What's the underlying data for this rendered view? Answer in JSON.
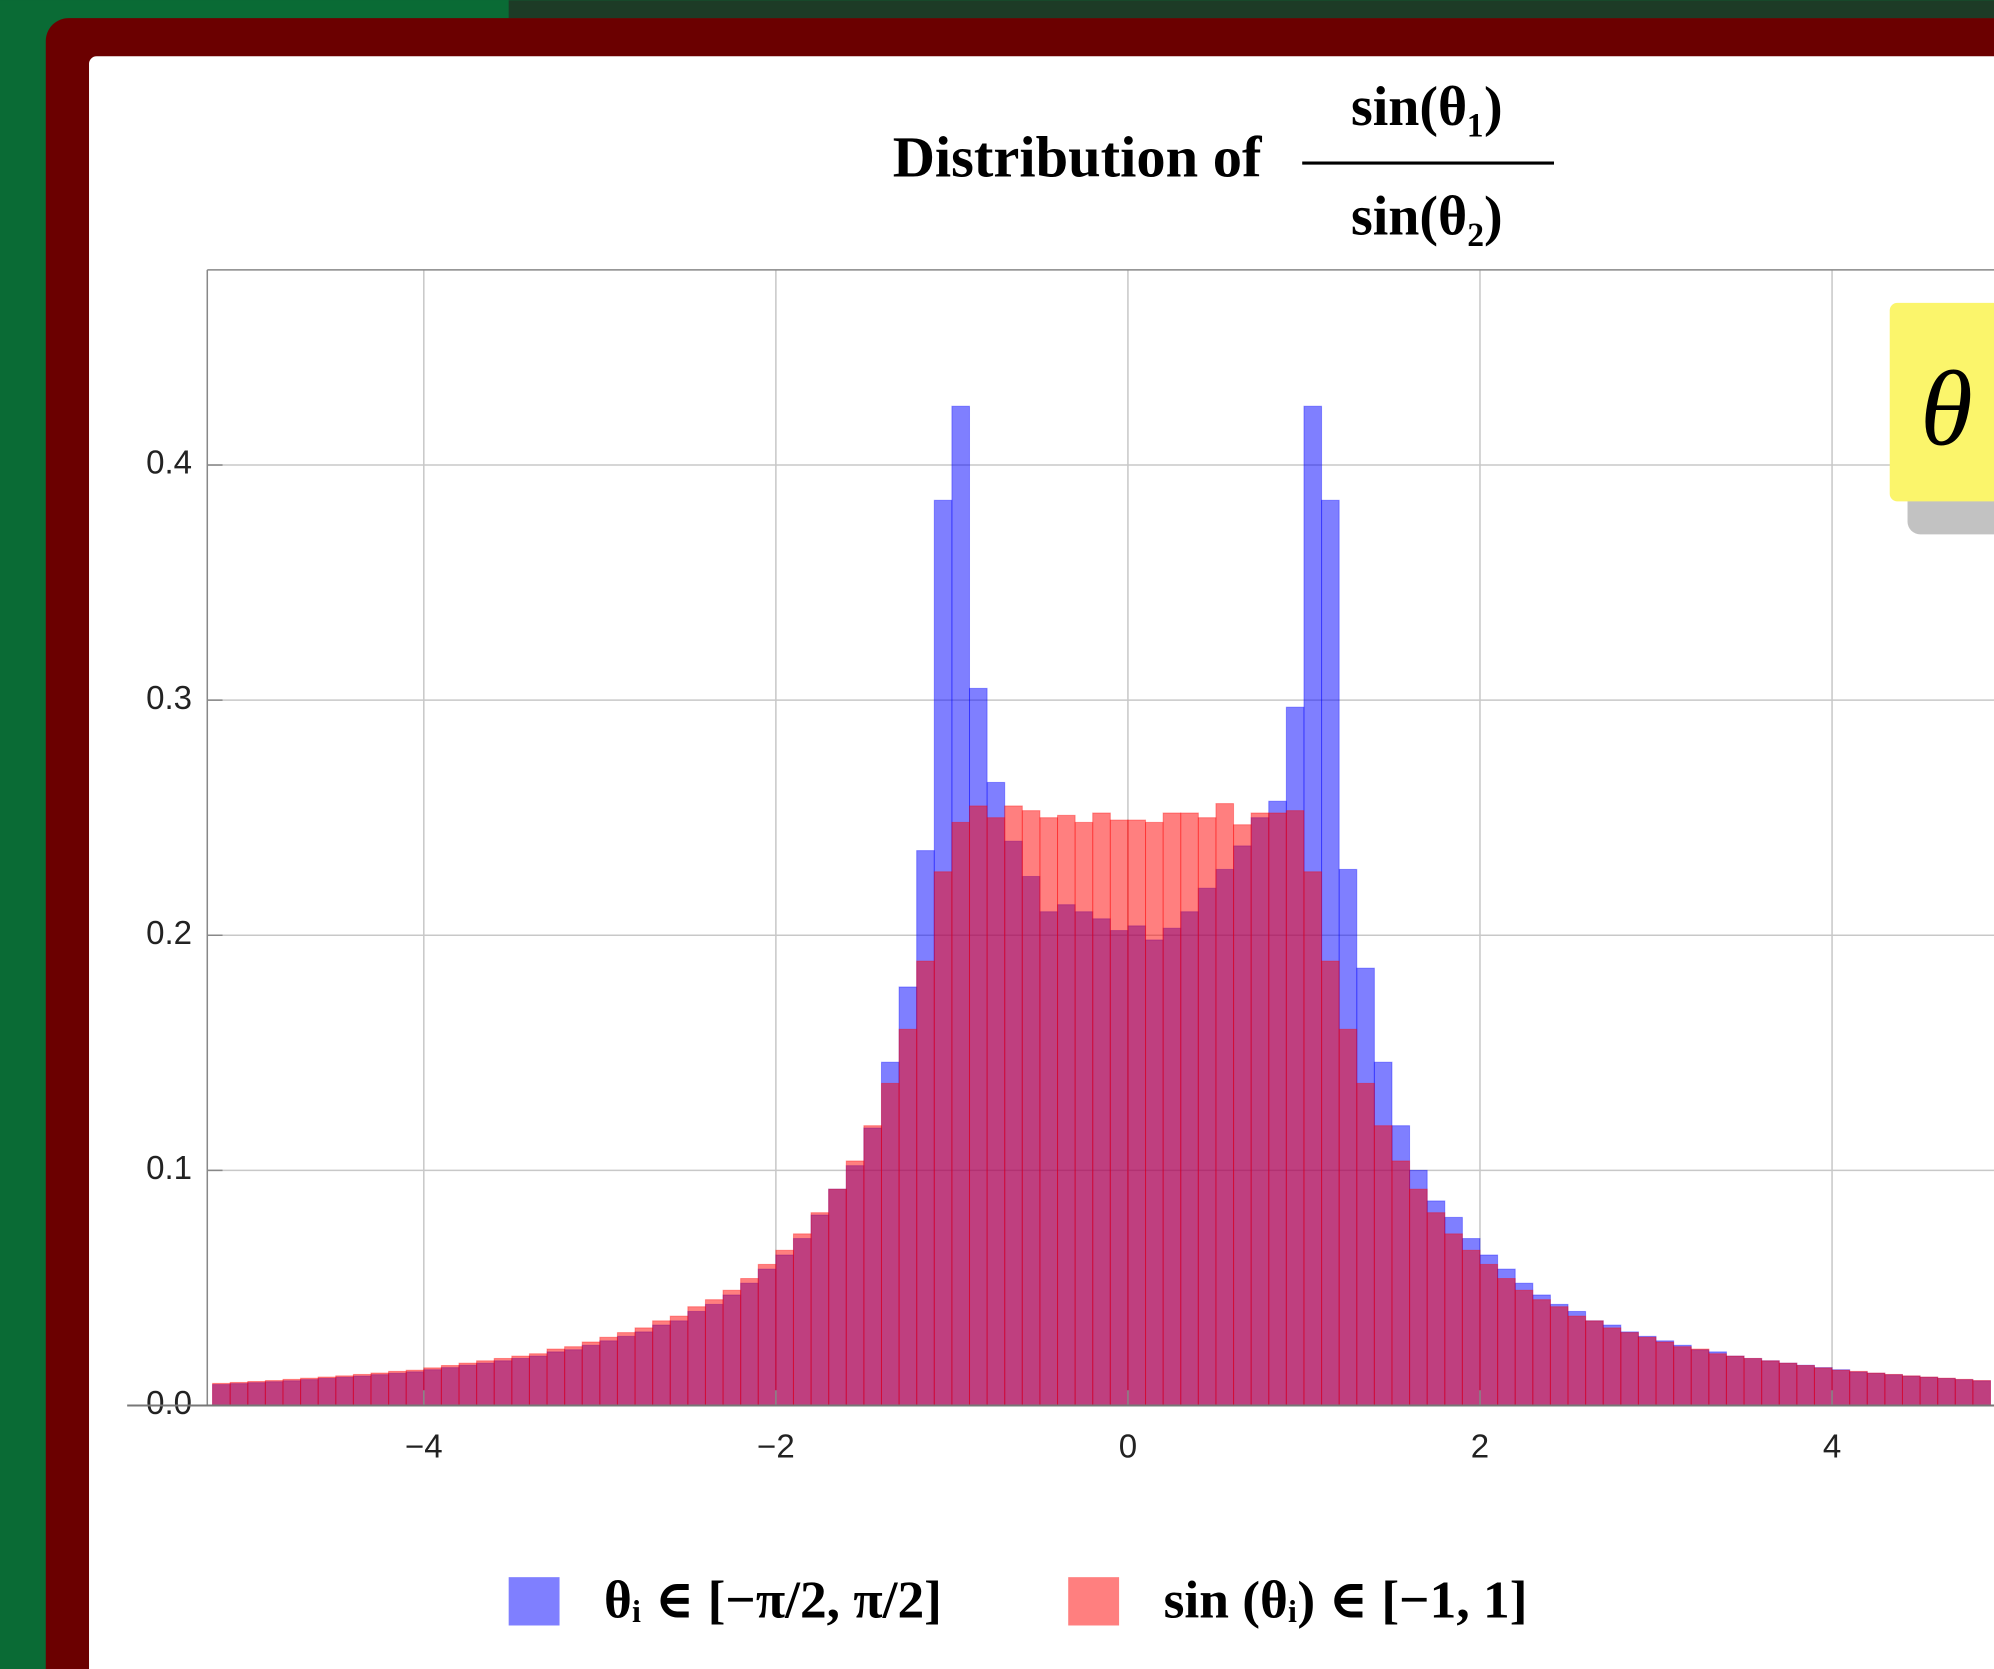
{
  "chart_data": {
    "type": "histogram",
    "title": "Distribution of",
    "title_fraction": {
      "numerator": "sin(θ₁)",
      "denominator": "sin(θ₂)"
    },
    "annotation": "θ",
    "bins": [
      -5.2,
      -5.1,
      -5.0,
      -4.9,
      -4.8,
      -4.7,
      -4.6,
      -4.5,
      -4.4,
      -4.3,
      -4.2,
      -4.1,
      -4.0,
      -3.9,
      -3.8,
      -3.7,
      -3.6,
      -3.5,
      -3.4,
      -3.3,
      -3.2,
      -3.1,
      -3.0,
      -2.9,
      -2.8,
      -2.7,
      -2.6,
      -2.5,
      -2.4,
      -2.3,
      -2.2,
      -2.1,
      -2.0,
      -1.9,
      -1.8,
      -1.7,
      -1.6,
      -1.5,
      -1.4,
      -1.3,
      -1.2,
      -1.1,
      -1.0,
      -0.9,
      -0.8,
      -0.7,
      -0.6,
      -0.5,
      -0.4,
      -0.3,
      -0.2,
      -0.1,
      0.0,
      0.1,
      0.2,
      0.3,
      0.4,
      0.5,
      0.6,
      0.7,
      0.8,
      0.9,
      1.0,
      1.1,
      1.2,
      1.3,
      1.4,
      1.5,
      1.6,
      1.7,
      1.8,
      1.9,
      2.0,
      2.1,
      2.2,
      2.3,
      2.4,
      2.5,
      2.6,
      2.7,
      2.8,
      2.9,
      3.0,
      3.1,
      3.2,
      3.3,
      3.4,
      3.5,
      3.6,
      3.7,
      3.8,
      3.9,
      4.0,
      4.1,
      4.2,
      4.3,
      4.4,
      4.5,
      4.6,
      4.7,
      4.8,
      4.9
    ],
    "series": [
      {
        "name": "θᵢ ∈ [−π/2, π/2]",
        "color": "#0000ff",
        "values": [
          0.0089,
          0.0093,
          0.0097,
          0.0101,
          0.0105,
          0.011,
          0.0115,
          0.012,
          0.0125,
          0.0131,
          0.0137,
          0.0143,
          0.0152,
          0.0161,
          0.0171,
          0.018,
          0.019,
          0.02,
          0.021,
          0.0228,
          0.0237,
          0.0256,
          0.0275,
          0.0294,
          0.0313,
          0.0342,
          0.036,
          0.04,
          0.043,
          0.047,
          0.052,
          0.058,
          0.064,
          0.071,
          0.081,
          0.092,
          0.102,
          0.118,
          0.146,
          0.178,
          0.236,
          0.385,
          0.425,
          0.305,
          0.265,
          0.24,
          0.225,
          0.21,
          0.213,
          0.21,
          0.207,
          0.202,
          0.204,
          0.198,
          0.203,
          0.21,
          0.22,
          0.228,
          0.238,
          0.25,
          0.257,
          0.297,
          0.425,
          0.385,
          0.228,
          0.186,
          0.146,
          0.119,
          0.1,
          0.087,
          0.08,
          0.071,
          0.064,
          0.058,
          0.052,
          0.047,
          0.043,
          0.04,
          0.036,
          0.0342,
          0.0313,
          0.0294,
          0.0275,
          0.0256,
          0.0237,
          0.0228,
          0.021,
          0.02,
          0.019,
          0.018,
          0.0171,
          0.0161,
          0.0152,
          0.0143,
          0.0137,
          0.0131,
          0.0125,
          0.012,
          0.0115,
          0.011,
          0.0105
        ]
      },
      {
        "name": "sin (θᵢ) ∈ [−1, 1]",
        "color": "#ff0000",
        "values": [
          0.0094,
          0.0098,
          0.0102,
          0.0106,
          0.0111,
          0.0116,
          0.0121,
          0.0126,
          0.0132,
          0.0138,
          0.0145,
          0.015,
          0.016,
          0.017,
          0.018,
          0.019,
          0.02,
          0.021,
          0.022,
          0.024,
          0.025,
          0.027,
          0.029,
          0.031,
          0.033,
          0.036,
          0.038,
          0.042,
          0.045,
          0.049,
          0.054,
          0.06,
          0.066,
          0.073,
          0.082,
          0.092,
          0.104,
          0.119,
          0.137,
          0.16,
          0.189,
          0.227,
          0.248,
          0.255,
          0.25,
          0.255,
          0.253,
          0.25,
          0.251,
          0.248,
          0.252,
          0.249,
          0.249,
          0.248,
          0.252,
          0.252,
          0.25,
          0.256,
          0.247,
          0.252,
          0.252,
          0.253,
          0.227,
          0.189,
          0.16,
          0.137,
          0.119,
          0.104,
          0.092,
          0.082,
          0.073,
          0.066,
          0.06,
          0.054,
          0.049,
          0.045,
          0.042,
          0.038,
          0.036,
          0.033,
          0.031,
          0.029,
          0.027,
          0.025,
          0.024,
          0.022,
          0.021,
          0.02,
          0.019,
          0.018,
          0.017,
          0.016,
          0.015,
          0.0145,
          0.0138,
          0.0132,
          0.0126,
          0.0121,
          0.0116,
          0.0111,
          0.0106
        ]
      }
    ],
    "xlim": [
      -5.23,
      4.92
    ],
    "ylim": [
      0,
      0.483
    ],
    "xticks": [
      {
        "value": -4,
        "label": "−4"
      },
      {
        "value": -2,
        "label": "−2"
      },
      0,
      2,
      4
    ],
    "yticks": [
      {
        "value": 0,
        "label": "0.0"
      },
      0.1,
      0.2,
      0.3,
      0.4
    ],
    "grid": true
  }
}
